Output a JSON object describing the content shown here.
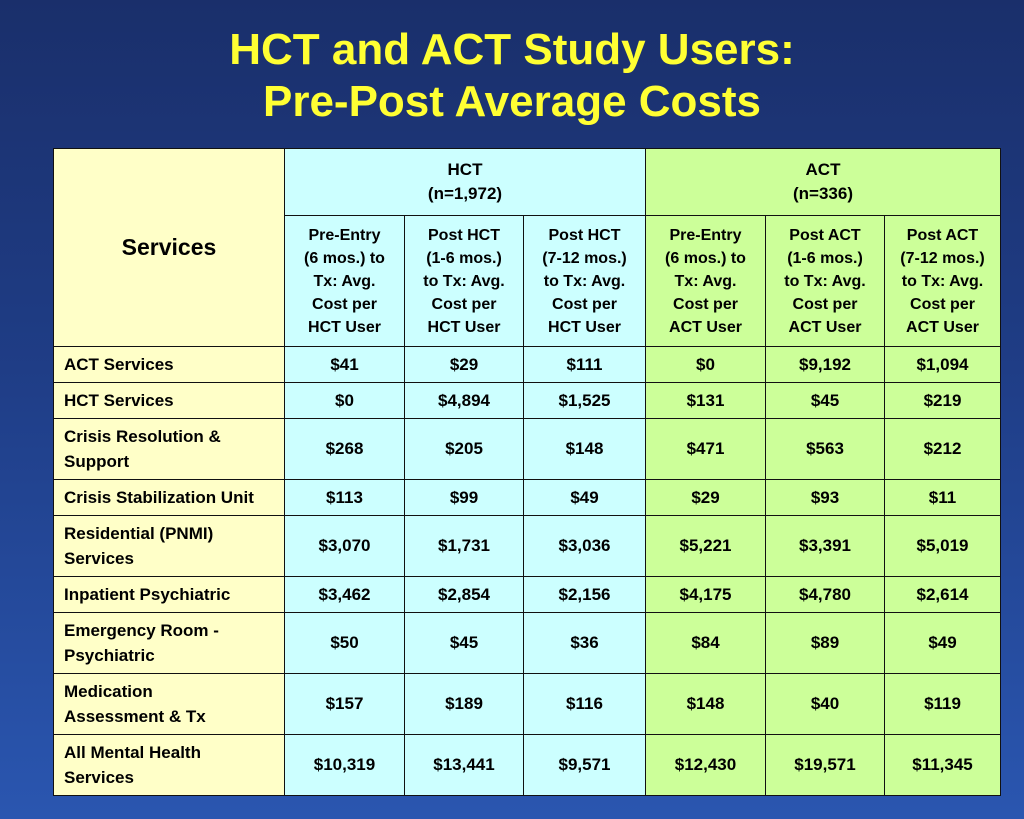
{
  "title": {
    "line1": "HCT and ACT Study Users:",
    "line2": "Pre-Post Average Costs"
  },
  "table": {
    "services_header": "Services",
    "groups": [
      {
        "name": "HCT",
        "n": "(n=1,972)"
      },
      {
        "name": "ACT",
        "n": "(n=336)"
      }
    ],
    "subheaders": [
      [
        "Pre-Entry",
        "(6 mos.) to",
        "Tx: Avg.",
        "Cost per",
        "HCT User"
      ],
      [
        "Post HCT",
        "(1-6 mos.)",
        "to Tx: Avg.",
        "Cost per",
        "HCT User"
      ],
      [
        "Post HCT",
        "(7-12 mos.)",
        "to Tx: Avg.",
        "Cost per",
        "HCT User"
      ],
      [
        "Pre-Entry",
        "(6 mos.) to",
        "Tx: Avg.",
        "Cost per",
        "ACT User"
      ],
      [
        "Post ACT",
        "(1-6 mos.)",
        "to Tx: Avg.",
        "Cost per",
        "ACT User"
      ],
      [
        "Post ACT",
        "(7-12 mos.)",
        "to Tx: Avg.",
        "Cost per",
        "ACT User"
      ]
    ],
    "rows": [
      {
        "label": [
          "ACT Services"
        ],
        "values": [
          "$41",
          "$29",
          "$111",
          "$0",
          "$9,192",
          "$1,094"
        ]
      },
      {
        "label": [
          "HCT Services"
        ],
        "values": [
          "$0",
          "$4,894",
          "$1,525",
          "$131",
          "$45",
          "$219"
        ]
      },
      {
        "label": [
          "Crisis Resolution &",
          "Support"
        ],
        "values": [
          "$268",
          "$205",
          "$148",
          "$471",
          "$563",
          "$212"
        ]
      },
      {
        "label": [
          "Crisis Stabilization Unit"
        ],
        "values": [
          "$113",
          "$99",
          "$49",
          "$29",
          "$93",
          "$11"
        ]
      },
      {
        "label": [
          "Residential (PNMI)",
          "Services"
        ],
        "values": [
          "$3,070",
          "$1,731",
          "$3,036",
          "$5,221",
          "$3,391",
          "$5,019"
        ]
      },
      {
        "label": [
          "Inpatient Psychiatric"
        ],
        "values": [
          "$3,462",
          "$2,854",
          "$2,156",
          "$4,175",
          "$4,780",
          "$2,614"
        ]
      },
      {
        "label": [
          "Emergency Room -",
          "Psychiatric"
        ],
        "values": [
          "$50",
          "$45",
          "$36",
          "$84",
          "$89",
          "$49"
        ]
      },
      {
        "label": [
          "Medication",
          "Assessment & Tx"
        ],
        "values": [
          "$157",
          "$189",
          "$116",
          "$148",
          "$40",
          "$119"
        ]
      },
      {
        "label": [
          "All Mental Health",
          "Services"
        ],
        "values": [
          "$10,319",
          "$13,441",
          "$9,571",
          "$12,430",
          "$19,571",
          "$11,345"
        ]
      }
    ]
  },
  "colors": {
    "title": "#ffff33",
    "services_column": "#ffffc8",
    "hct_columns": "#ccffff",
    "act_columns": "#ccff99"
  }
}
